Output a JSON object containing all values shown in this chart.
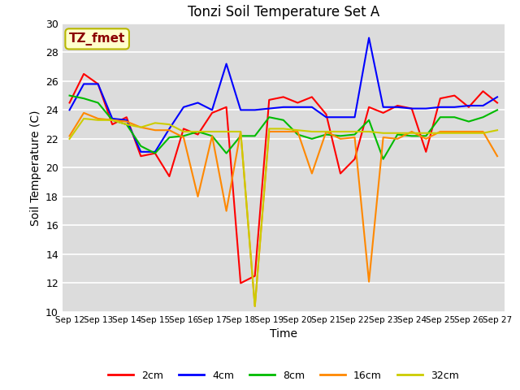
{
  "title": "Tonzi Soil Temperature Set A",
  "xlabel": "Time",
  "ylabel": "Soil Temperature (C)",
  "ylim": [
    10,
    30
  ],
  "background_color": "#dcdcdc",
  "annotation_text": "TZ_fmet",
  "annotation_color": "#8B0000",
  "annotation_bg": "#ffffcc",
  "annotation_border": "#b8b800",
  "x_tick_positions": [
    0,
    2,
    4,
    6,
    8,
    10,
    12,
    14,
    16,
    18,
    20,
    22,
    24,
    26,
    28,
    30
  ],
  "x_labels": [
    "Sep 12",
    "Sep 13",
    "Sep 14",
    "Sep 15",
    "Sep 16",
    "Sep 17",
    "Sep 18",
    "Sep 19",
    "Sep 20",
    "Sep 21",
    "Sep 22",
    "Sep 23",
    "Sep 24",
    "Sep 25",
    "Sep 26",
    "Sep 27"
  ],
  "series": {
    "2cm": {
      "color": "#FF0000",
      "x": [
        0,
        1,
        2,
        3,
        4,
        5,
        6,
        7,
        8,
        9,
        10,
        11,
        12,
        13,
        14,
        15,
        16,
        17,
        18,
        19,
        20,
        21,
        22,
        23,
        24,
        25,
        26,
        27,
        28,
        29,
        30
      ],
      "y": [
        24.5,
        26.5,
        25.8,
        23.0,
        23.5,
        20.8,
        21.0,
        19.4,
        22.7,
        22.3,
        23.8,
        24.2,
        12.0,
        12.5,
        24.7,
        24.9,
        24.5,
        24.9,
        23.7,
        19.6,
        20.6,
        24.2,
        23.8,
        24.3,
        24.1,
        21.1,
        24.8,
        25.0,
        24.2,
        25.3,
        24.5
      ]
    },
    "4cm": {
      "color": "#0000FF",
      "x": [
        0,
        1,
        2,
        3,
        4,
        5,
        6,
        7,
        8,
        9,
        10,
        11,
        12,
        13,
        14,
        15,
        16,
        17,
        18,
        19,
        20,
        21,
        22,
        23,
        24,
        25,
        26,
        27,
        28,
        29,
        30
      ],
      "y": [
        24.0,
        25.8,
        25.8,
        23.4,
        23.3,
        21.1,
        21.1,
        22.7,
        24.2,
        24.5,
        24.0,
        27.2,
        24.0,
        24.0,
        24.1,
        24.2,
        24.2,
        24.2,
        23.5,
        23.5,
        23.5,
        29.0,
        24.2,
        24.2,
        24.1,
        24.1,
        24.2,
        24.2,
        24.3,
        24.3,
        24.9
      ]
    },
    "8cm": {
      "color": "#00BB00",
      "x": [
        0,
        1,
        2,
        3,
        4,
        5,
        6,
        7,
        8,
        9,
        10,
        11,
        12,
        13,
        14,
        15,
        16,
        17,
        18,
        19,
        20,
        21,
        22,
        23,
        24,
        25,
        26,
        27,
        28,
        29,
        30
      ],
      "y": [
        25.0,
        24.8,
        24.5,
        23.3,
        23.0,
        21.5,
        21.0,
        22.1,
        22.2,
        22.5,
        22.2,
        21.0,
        22.2,
        22.2,
        23.5,
        23.3,
        22.3,
        22.0,
        22.3,
        22.2,
        22.3,
        23.3,
        20.6,
        22.3,
        22.2,
        22.2,
        23.5,
        23.5,
        23.2,
        23.5,
        24.0
      ]
    },
    "16cm": {
      "color": "#FF8800",
      "x": [
        0,
        1,
        2,
        3,
        4,
        5,
        6,
        7,
        8,
        9,
        10,
        11,
        12,
        13,
        14,
        15,
        16,
        17,
        18,
        19,
        20,
        21,
        22,
        23,
        24,
        25,
        26,
        27,
        28,
        29,
        30
      ],
      "y": [
        22.2,
        23.8,
        23.4,
        23.3,
        23.2,
        22.8,
        22.6,
        22.6,
        22.1,
        18.0,
        22.2,
        17.0,
        22.5,
        10.4,
        22.5,
        22.5,
        22.5,
        19.6,
        22.5,
        22.0,
        22.1,
        12.1,
        22.1,
        22.0,
        22.5,
        22.0,
        22.5,
        22.5,
        22.5,
        22.5,
        20.8
      ]
    },
    "32cm": {
      "color": "#CCCC00",
      "x": [
        0,
        1,
        2,
        3,
        4,
        5,
        6,
        7,
        8,
        9,
        10,
        11,
        12,
        13,
        14,
        15,
        16,
        17,
        18,
        19,
        20,
        21,
        22,
        23,
        24,
        25,
        26,
        27,
        28,
        29,
        30
      ],
      "y": [
        22.0,
        23.4,
        23.3,
        23.3,
        23.0,
        22.8,
        23.1,
        23.0,
        22.5,
        22.5,
        22.5,
        22.5,
        22.5,
        10.4,
        22.7,
        22.7,
        22.6,
        22.5,
        22.5,
        22.5,
        22.5,
        22.5,
        22.4,
        22.4,
        22.4,
        22.4,
        22.4,
        22.4,
        22.4,
        22.4,
        22.6
      ]
    }
  }
}
